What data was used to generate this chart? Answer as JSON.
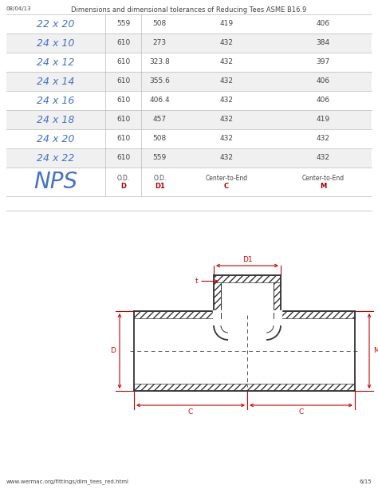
{
  "title": "Dimensions and dimensional tolerances of Reducing Tees ASME B16.9",
  "date": "08/04/13",
  "page": "6/15",
  "footer_url": "www.wermac.org/fittings/dim_tees_red.html",
  "rows": [
    [
      "22 x 20",
      "559",
      "508",
      "419",
      "406"
    ],
    [
      "24 x 10",
      "610",
      "273",
      "432",
      "384"
    ],
    [
      "24 x 12",
      "610",
      "323.8",
      "432",
      "397"
    ],
    [
      "24 x 14",
      "610",
      "355.6",
      "432",
      "406"
    ],
    [
      "24 x 16",
      "610",
      "406.4",
      "432",
      "406"
    ],
    [
      "24 x 18",
      "610",
      "457",
      "432",
      "419"
    ],
    [
      "24 x 20",
      "610",
      "508",
      "432",
      "432"
    ],
    [
      "24 x 22",
      "610",
      "559",
      "432",
      "432"
    ]
  ],
  "nps_color": "#4472C4",
  "value_color": "#444444",
  "header_red_color": "#AA0000",
  "bg_white": "#FFFFFF",
  "bg_light": "#F0F0F0",
  "grid_color": "#BBBBBB",
  "line_color": "#333333",
  "dim_color": "#CC0000"
}
